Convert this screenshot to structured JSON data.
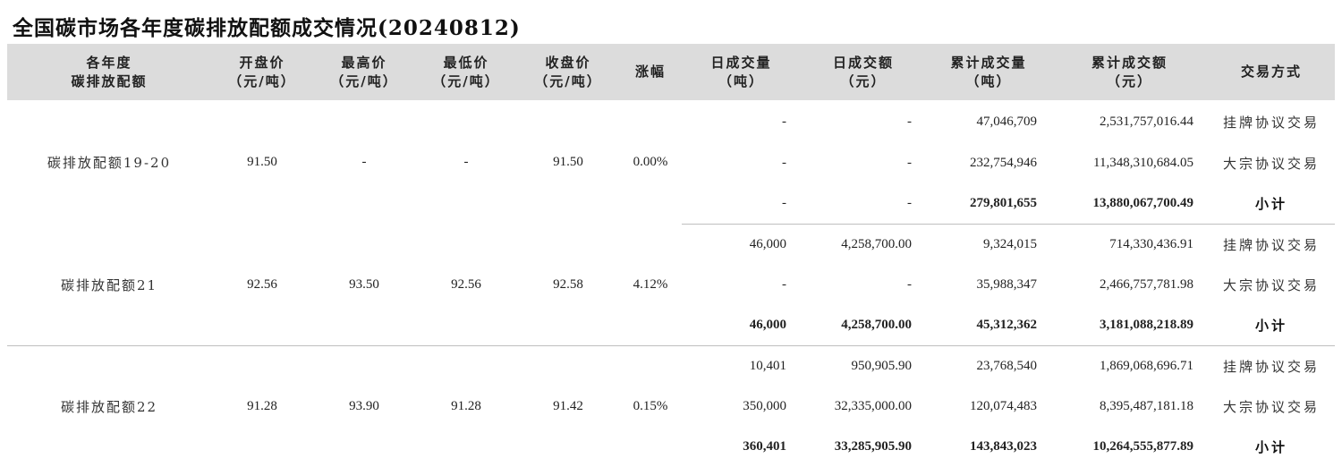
{
  "title": "全国碳市场各年度碳排放配额成交情况(20240812)",
  "columns": [
    {
      "line1": "各年度",
      "line2": "碳排放配额"
    },
    {
      "line1": "开盘价",
      "line2": "（元/吨）"
    },
    {
      "line1": "最高价",
      "line2": "（元/吨）"
    },
    {
      "line1": "最低价",
      "line2": "（元/吨）"
    },
    {
      "line1": "收盘价",
      "line2": "（元/吨）"
    },
    {
      "line1": "涨幅",
      "line2": ""
    },
    {
      "line1": "日成交量",
      "line2": "（吨）"
    },
    {
      "line1": "日成交额",
      "line2": "（元）"
    },
    {
      "line1": "累计成交量",
      "line2": "（吨）"
    },
    {
      "line1": "累计成交额",
      "line2": "（元）"
    },
    {
      "line1": "交易方式",
      "line2": ""
    }
  ],
  "groups": [
    {
      "name": "碳排放配额19-20",
      "open": "91.50",
      "high": "-",
      "low": "-",
      "close": "91.50",
      "change": "0.00%",
      "rows": [
        {
          "daily_volume": "-",
          "daily_amount": "-",
          "cum_volume": "47,046,709",
          "cum_amount": "2,531,757,016.44",
          "method": "挂牌协议交易"
        },
        {
          "daily_volume": "-",
          "daily_amount": "-",
          "cum_volume": "232,754,946",
          "cum_amount": "11,348,310,684.05",
          "method": "大宗协议交易"
        },
        {
          "daily_volume": "-",
          "daily_amount": "-",
          "cum_volume": "279,801,655",
          "cum_amount": "13,880,067,700.49",
          "method": "小计"
        }
      ]
    },
    {
      "name": "碳排放配额21",
      "open": "92.56",
      "high": "93.50",
      "low": "92.56",
      "close": "92.58",
      "change": "4.12%",
      "rows": [
        {
          "daily_volume": "46,000",
          "daily_amount": "4,258,700.00",
          "cum_volume": "9,324,015",
          "cum_amount": "714,330,436.91",
          "method": "挂牌协议交易"
        },
        {
          "daily_volume": "-",
          "daily_amount": "-",
          "cum_volume": "35,988,347",
          "cum_amount": "2,466,757,781.98",
          "method": "大宗协议交易"
        },
        {
          "daily_volume": "46,000",
          "daily_amount": "4,258,700.00",
          "cum_volume": "45,312,362",
          "cum_amount": "3,181,088,218.89",
          "method": "小计"
        }
      ]
    },
    {
      "name": "碳排放配额22",
      "open": "91.28",
      "high": "93.90",
      "low": "91.28",
      "close": "91.42",
      "change": "0.15%",
      "rows": [
        {
          "daily_volume": "10,401",
          "daily_amount": "950,905.90",
          "cum_volume": "23,768,540",
          "cum_amount": "1,869,068,696.71",
          "method": "挂牌协议交易"
        },
        {
          "daily_volume": "350,000",
          "daily_amount": "32,335,000.00",
          "cum_volume": "120,074,483",
          "cum_amount": "8,395,487,181.18",
          "method": "大宗协议交易"
        },
        {
          "daily_volume": "360,401",
          "daily_amount": "33,285,905.90",
          "cum_volume": "143,843,023",
          "cum_amount": "10,264,555,877.89",
          "method": "小计"
        }
      ]
    }
  ]
}
